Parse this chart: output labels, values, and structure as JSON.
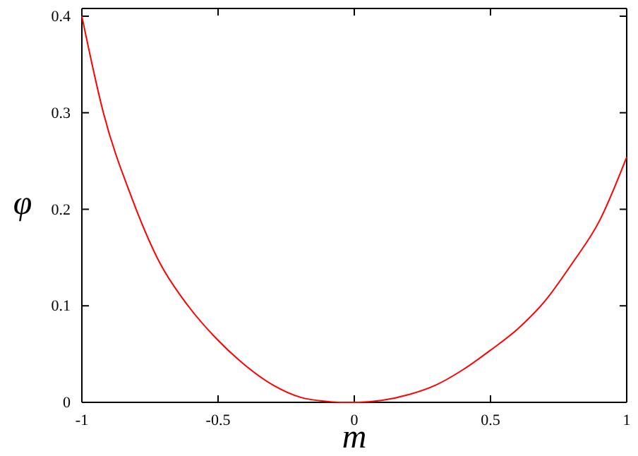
{
  "chart_data": {
    "type": "line",
    "xlabel": "m",
    "ylabel": "φ",
    "xlim": [
      -1,
      1
    ],
    "ylim": [
      0,
      0.408
    ],
    "xticks": [
      -1,
      -0.5,
      0,
      0.5,
      1
    ],
    "yticks": [
      0,
      0.1,
      0.2,
      0.3,
      0.4
    ],
    "grid": false,
    "series": [
      {
        "color": "#ff0000",
        "x": [
          -1,
          -0.921,
          -0.817,
          -0.713,
          -0.61,
          -0.506,
          -0.403,
          -0.299,
          -0.195,
          -0.1,
          -0.05,
          0,
          0.1,
          0.2,
          0.3,
          0.4,
          0.5,
          0.6,
          0.7,
          0.8,
          0.9,
          1
        ],
        "values": [
          0.4,
          0.3,
          0.212,
          0.144,
          0.1,
          0.066,
          0.039,
          0.018,
          0.005,
          0.001,
          0,
          0,
          0.002,
          0.008,
          0.018,
          0.034,
          0.054,
          0.076,
          0.105,
          0.144,
          0.188,
          0.254
        ]
      }
    ]
  }
}
